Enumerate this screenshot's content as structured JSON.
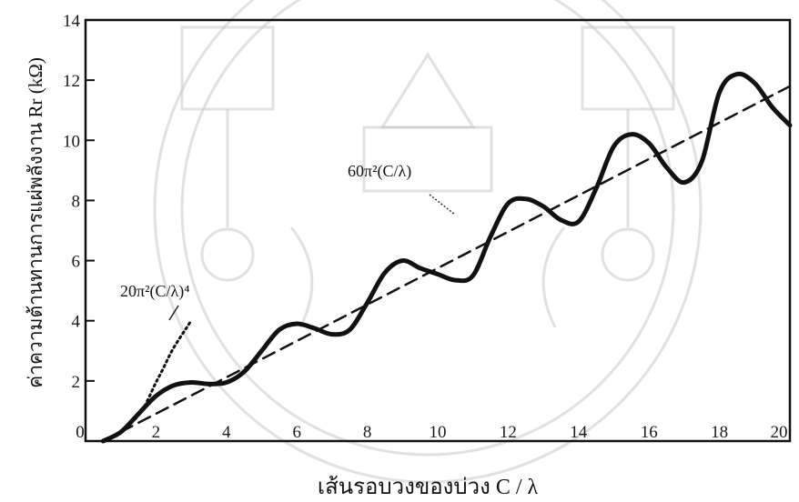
{
  "chart_data": {
    "type": "line",
    "title": "",
    "xlabel": "เส้นรอบวงของบ่วง C / λ",
    "ylabel": "ค่าความต้านทานการแผ่พลังงาน Rr (kΩ)",
    "xlim": [
      0,
      20
    ],
    "ylim": [
      0,
      14
    ],
    "x_ticks": [
      "0",
      "2",
      "4",
      "6",
      "8",
      "10",
      "12",
      "14",
      "16",
      "18",
      "20"
    ],
    "y_ticks": [
      "2",
      "4",
      "6",
      "8",
      "10",
      "12",
      "14"
    ],
    "grid": false,
    "series": [
      {
        "name": "",
        "style": "solid",
        "x": [
          0.5,
          1.0,
          1.5,
          2.0,
          2.5,
          3.0,
          3.5,
          4.0,
          4.5,
          5.0,
          5.5,
          6.0,
          6.5,
          7.0,
          7.5,
          8.0,
          8.5,
          9.0,
          9.5,
          10.0,
          10.5,
          11.0,
          11.5,
          12.0,
          12.5,
          13.0,
          13.5,
          14.0,
          14.5,
          15.0,
          15.5,
          16.0,
          16.5,
          17.0,
          17.5,
          18.0,
          18.5,
          19.0,
          19.5,
          20.0
        ],
        "y": [
          0.0,
          0.3,
          0.9,
          1.5,
          1.85,
          1.95,
          1.9,
          1.95,
          2.3,
          3.0,
          3.7,
          3.9,
          3.75,
          3.55,
          3.7,
          4.6,
          5.6,
          6.0,
          5.75,
          5.55,
          5.35,
          5.5,
          6.8,
          7.9,
          8.05,
          7.8,
          7.35,
          7.3,
          8.4,
          9.8,
          10.2,
          9.9,
          9.1,
          8.6,
          9.3,
          11.6,
          12.2,
          11.9,
          11.1,
          10.5
        ]
      },
      {
        "name": "",
        "style": "dashed",
        "x": [
          0.5,
          20
        ],
        "y": [
          0.0,
          11.8
        ]
      },
      {
        "name": "",
        "style": "dotted",
        "x": [
          1.3,
          1.6,
          1.8,
          2.0,
          2.2,
          2.5,
          3.0
        ],
        "y": [
          0.6,
          1.0,
          1.45,
          1.95,
          2.4,
          3.1,
          4.0
        ]
      }
    ],
    "annotations": [
      {
        "label": "20π²(C/λ)⁴"
      },
      {
        "label": "60π²(C/λ)"
      }
    ]
  }
}
